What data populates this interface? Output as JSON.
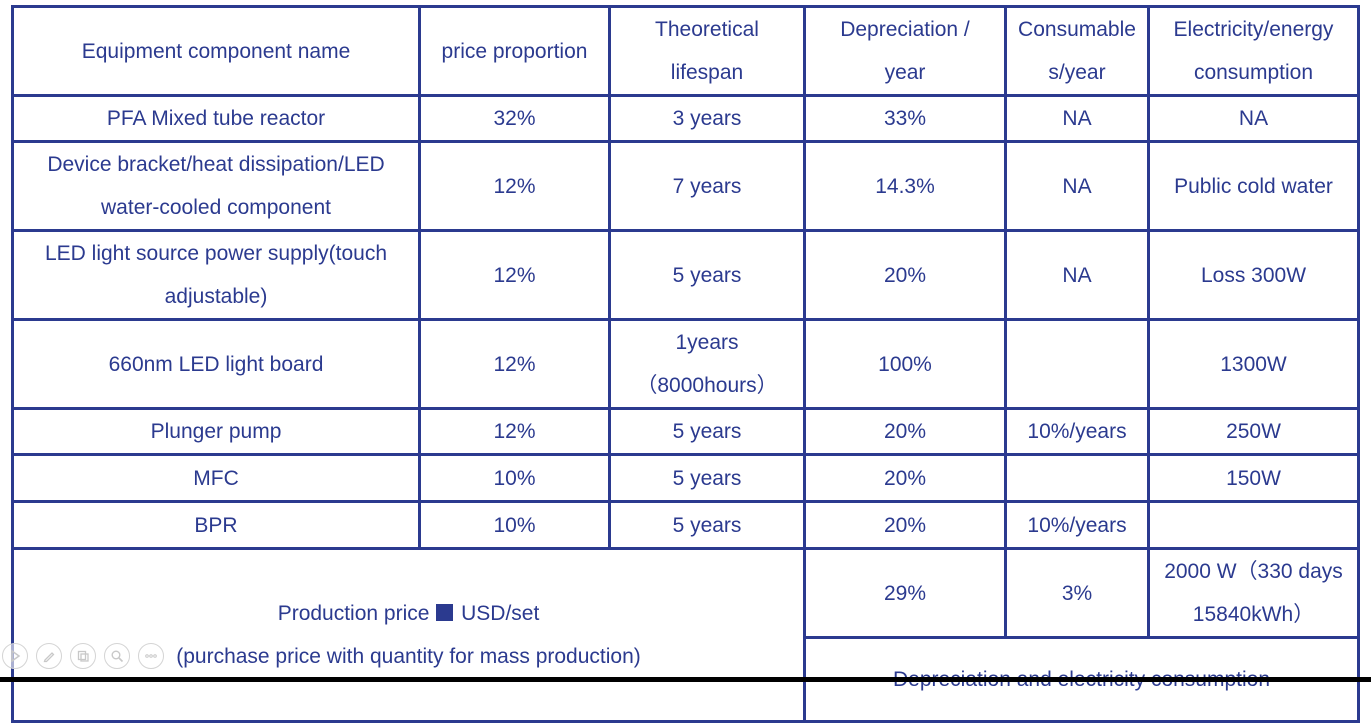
{
  "header": {
    "name": "Equipment component name",
    "price": "price proportion",
    "lifespan_l1": "Theoretical",
    "lifespan_l2": "lifespan",
    "depreciation_l1": "Depreciation /",
    "depreciation_l2": "year",
    "consumables_l1": "Consumable",
    "consumables_l2": "s/year",
    "electricity_l1": "Electricity/energy",
    "electricity_l2": "consumption"
  },
  "rows": [
    {
      "name_l1": "PFA Mixed tube reactor",
      "name_l2": "",
      "price": "32%",
      "lifespan_l1": "3 years",
      "lifespan_l2": "",
      "depreciation": "33%",
      "consumables": "NA",
      "electricity": "NA"
    },
    {
      "name_l1": "Device bracket/heat dissipation/LED",
      "name_l2": "water-cooled component",
      "price": "12%",
      "lifespan_l1": "7 years",
      "lifespan_l2": "",
      "depreciation": "14.3%",
      "consumables": "NA",
      "electricity": "Public cold water"
    },
    {
      "name_l1": "LED light source power supply(touch",
      "name_l2": "adjustable)",
      "price": "12%",
      "lifespan_l1": "5 years",
      "lifespan_l2": "",
      "depreciation": "20%",
      "consumables": "NA",
      "electricity": "Loss 300W"
    },
    {
      "name_l1": "660nm LED light board",
      "name_l2": "",
      "price": "12%",
      "lifespan_l1": "1years",
      "lifespan_l2": "（8000hours）",
      "depreciation": "100%",
      "consumables": "",
      "electricity": "1300W"
    },
    {
      "name_l1": "Plunger pump",
      "name_l2": "",
      "price": "12%",
      "lifespan_l1": "5 years",
      "lifespan_l2": "",
      "depreciation": "20%",
      "consumables": "10%/years",
      "electricity": "250W"
    },
    {
      "name_l1": "MFC",
      "name_l2": "",
      "price": "10%",
      "lifespan_l1": "5 years",
      "lifespan_l2": "",
      "depreciation": "20%",
      "consumables": "",
      "electricity": "150W"
    },
    {
      "name_l1": "BPR",
      "name_l2": "",
      "price": "10%",
      "lifespan_l1": "5 years",
      "lifespan_l2": "",
      "depreciation": "20%",
      "consumables": "10%/years",
      "electricity": ""
    }
  ],
  "footer": {
    "production_label": "Production price",
    "production_unit": "USD/set",
    "production_note": "(purchase price with quantity for mass production)",
    "depreciation": "29%",
    "consumables": "3%",
    "electricity_l1": "2000 W（330 days",
    "electricity_l2": "15840kWh）",
    "summary": "Depreciation and electricity consumption"
  },
  "toolbar": {
    "icons": [
      "play-icon",
      "pen-icon",
      "copy-icon",
      "zoom-icon",
      "more-icon"
    ]
  },
  "colors": {
    "text_and_border": "#2b3a8f",
    "background": "#ffffff"
  }
}
